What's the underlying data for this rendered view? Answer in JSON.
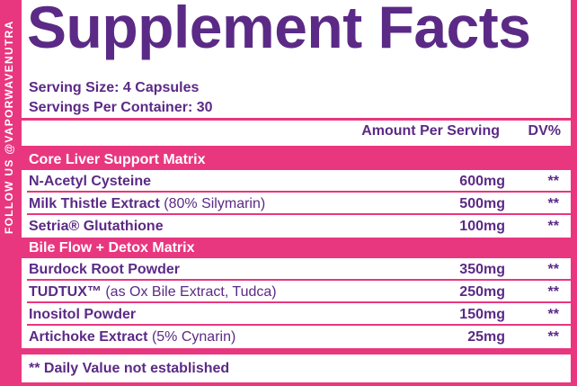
{
  "side_text": "FOLLOW US @VAPORWAVENUTRA",
  "title": "Supplement Facts",
  "serving_size": "Serving Size: 4 Capsules",
  "servings_per_container": "Servings Per Container: 30",
  "header": {
    "amount": "Amount Per Serving",
    "dv": "DV%"
  },
  "sections": [
    {
      "title": "Core Liver Support Matrix",
      "rows": [
        {
          "name": "N-Acetyl Cysteine",
          "amount": "600mg",
          "dv": "**"
        },
        {
          "name": "Milk Thistle Extract",
          "note": "(80% Silymarin)",
          "amount": "500mg",
          "dv": "**"
        },
        {
          "name": "Setria® Glutathione",
          "amount": "100mg",
          "dv": "**"
        }
      ]
    },
    {
      "title": "Bile Flow + Detox Matrix",
      "rows": [
        {
          "name": "Burdock Root Powder",
          "amount": "350mg",
          "dv": "**"
        },
        {
          "name": "TUDTUX™",
          "note": "(as Ox Bile Extract, Tudca)",
          "amount": "250mg",
          "dv": "**"
        },
        {
          "name": "Inositol Powder",
          "amount": "150mg",
          "dv": "**"
        },
        {
          "name": "Artichoke Extract",
          "note": "(5% Cynarin)",
          "amount": "25mg",
          "dv": "**"
        }
      ]
    }
  ],
  "footnote": "** Daily Value not established"
}
